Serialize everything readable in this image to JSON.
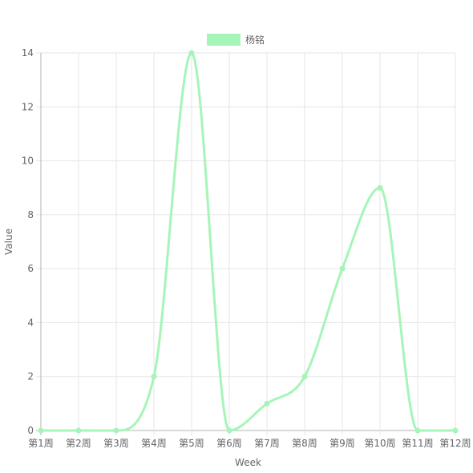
{
  "chart_data": {
    "type": "line",
    "categories": [
      "第1周",
      "第2周",
      "第3周",
      "第4周",
      "第5周",
      "第6周",
      "第7周",
      "第8周",
      "第9周",
      "第10周",
      "第11周",
      "第12周"
    ],
    "series": [
      {
        "name": "杨铭",
        "values": [
          0,
          0,
          0,
          2,
          14,
          0,
          1,
          2,
          6,
          9,
          0,
          0
        ]
      }
    ],
    "xlabel": "Week",
    "ylabel": "Value",
    "ylim": [
      0,
      14
    ],
    "yticks": [
      0,
      2,
      4,
      6,
      8,
      10,
      12,
      14
    ],
    "grid": true,
    "smooth": true,
    "legend_position": "top-center",
    "colors": {
      "series": "#a6f5b8",
      "grid": "#e6e6e6",
      "axis": "#b3b3b3",
      "text": "#666666"
    }
  }
}
